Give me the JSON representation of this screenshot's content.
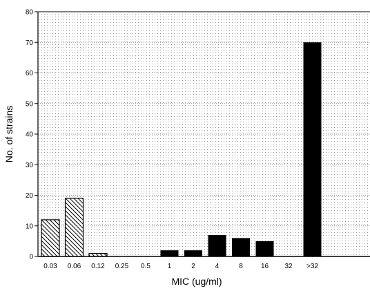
{
  "chart_data": {
    "type": "bar",
    "title": "",
    "xlabel": "MIC (ug/ml)",
    "ylabel": "No. of strains",
    "ylim": [
      0,
      80
    ],
    "yticks": [
      0,
      10,
      20,
      30,
      40,
      50,
      60,
      70,
      80
    ],
    "grid": true,
    "categories": [
      "0.03",
      "0.06",
      "0.12",
      "0.25",
      "0.5",
      "1",
      "2",
      "4",
      "8",
      "16",
      "32",
      ">32"
    ],
    "series": [
      {
        "pattern": "hatched",
        "values": [
          12,
          19,
          1,
          0,
          0,
          0,
          0,
          0,
          0,
          0,
          0,
          0
        ]
      },
      {
        "pattern": "solid",
        "values": [
          0,
          0,
          0,
          0,
          0,
          2,
          2,
          7,
          6,
          5,
          0,
          70
        ]
      }
    ]
  }
}
